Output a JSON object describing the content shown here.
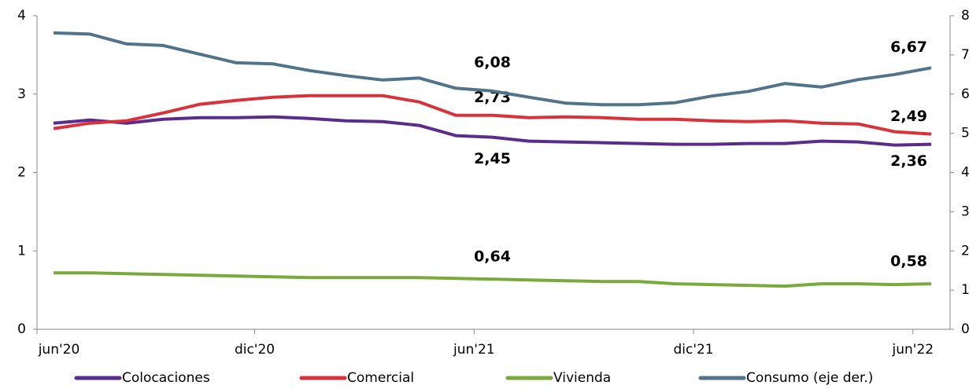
{
  "chart_data": {
    "type": "line",
    "categories": [
      "jun'20",
      null,
      null,
      null,
      null,
      null,
      "dic'20",
      null,
      null,
      null,
      null,
      null,
      "jun'21",
      null,
      null,
      null,
      null,
      null,
      "dic'21",
      null,
      null,
      null,
      null,
      null,
      "jun'22"
    ],
    "ylim": [
      0,
      4
    ],
    "yticks": [
      0,
      1,
      2,
      3,
      4
    ],
    "y2lim": [
      0,
      8
    ],
    "y2ticks": [
      0,
      1,
      2,
      3,
      4,
      5,
      6,
      7,
      8
    ],
    "legend": "bottom",
    "series": [
      {
        "name": "Colocaciones",
        "color": "#5b2c8b",
        "values": [
          2.63,
          2.67,
          2.63,
          2.68,
          2.7,
          2.7,
          2.71,
          2.69,
          2.66,
          2.65,
          2.6,
          2.47,
          2.45,
          2.4,
          2.39,
          2.38,
          2.37,
          2.36,
          2.36,
          2.37,
          2.37,
          2.4,
          2.39,
          2.35,
          2.36
        ],
        "value_labels": [
          null,
          null,
          null,
          null,
          null,
          null,
          null,
          null,
          null,
          null,
          null,
          null,
          "2,45",
          null,
          null,
          null,
          null,
          null,
          null,
          null,
          null,
          null,
          null,
          null,
          "2,36"
        ]
      },
      {
        "name": "Comercial",
        "color": "#d9323a",
        "values": [
          2.56,
          2.63,
          2.66,
          2.76,
          2.87,
          2.92,
          2.96,
          2.98,
          2.98,
          2.98,
          2.9,
          2.73,
          2.73,
          2.7,
          2.71,
          2.7,
          2.68,
          2.68,
          2.66,
          2.65,
          2.66,
          2.63,
          2.62,
          2.52,
          2.49
        ],
        "value_labels": [
          null,
          null,
          null,
          null,
          null,
          null,
          null,
          null,
          null,
          null,
          null,
          null,
          "2,73",
          null,
          null,
          null,
          null,
          null,
          null,
          null,
          null,
          null,
          null,
          null,
          "2,49"
        ]
      },
      {
        "name": "Vivienda",
        "color": "#78ab3c",
        "values": [
          0.72,
          0.72,
          0.71,
          0.7,
          0.69,
          0.68,
          0.67,
          0.66,
          0.66,
          0.66,
          0.66,
          0.65,
          0.64,
          0.63,
          0.62,
          0.61,
          0.61,
          0.58,
          0.57,
          0.56,
          0.55,
          0.58,
          0.58,
          0.57,
          0.58
        ],
        "value_labels": [
          null,
          null,
          null,
          null,
          null,
          null,
          null,
          null,
          null,
          null,
          null,
          null,
          "0,64",
          null,
          null,
          null,
          null,
          null,
          null,
          null,
          null,
          null,
          null,
          null,
          "0,58"
        ]
      },
      {
        "name": "Consumo (eje der.)",
        "color": "#51748b",
        "axis": "y2",
        "values": [
          7.56,
          7.53,
          7.28,
          7.24,
          7.02,
          6.8,
          6.77,
          6.6,
          6.47,
          6.36,
          6.41,
          6.15,
          6.08,
          5.92,
          5.77,
          5.73,
          5.73,
          5.78,
          5.95,
          6.07,
          6.27,
          6.18,
          6.37,
          6.5,
          6.67
        ],
        "value_labels": [
          null,
          null,
          null,
          null,
          null,
          null,
          null,
          null,
          null,
          null,
          null,
          null,
          "6,08",
          null,
          null,
          null,
          null,
          null,
          null,
          null,
          null,
          null,
          null,
          null,
          "6,67"
        ]
      }
    ]
  }
}
